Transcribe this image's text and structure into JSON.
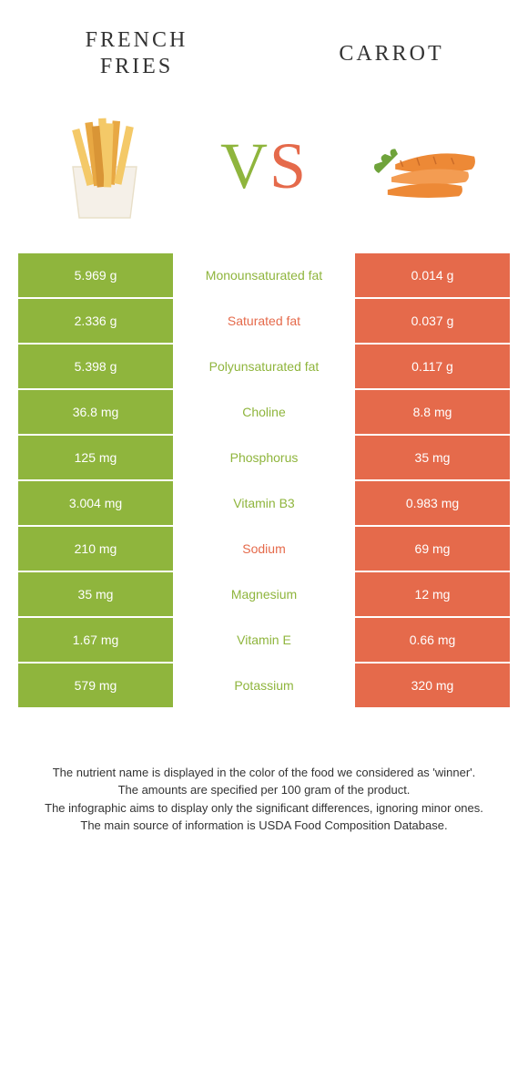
{
  "colors": {
    "green": "#8fb53d",
    "orange": "#e56a4b",
    "text": "#333333"
  },
  "left_food": {
    "title": "FRENCH FRIES"
  },
  "right_food": {
    "title": "CARROT"
  },
  "vs": {
    "v": "V",
    "s": "S"
  },
  "rows": [
    {
      "left": "5.969 g",
      "label": "Monounsaturated fat",
      "right": "0.014 g",
      "winner": "left"
    },
    {
      "left": "2.336 g",
      "label": "Saturated fat",
      "right": "0.037 g",
      "winner": "right"
    },
    {
      "left": "5.398 g",
      "label": "Polyunsaturated fat",
      "right": "0.117 g",
      "winner": "left"
    },
    {
      "left": "36.8 mg",
      "label": "Choline",
      "right": "8.8 mg",
      "winner": "left"
    },
    {
      "left": "125 mg",
      "label": "Phosphorus",
      "right": "35 mg",
      "winner": "left"
    },
    {
      "left": "3.004 mg",
      "label": "Vitamin B3",
      "right": "0.983 mg",
      "winner": "left"
    },
    {
      "left": "210 mg",
      "label": "Sodium",
      "right": "69 mg",
      "winner": "right"
    },
    {
      "left": "35 mg",
      "label": "Magnesium",
      "right": "12 mg",
      "winner": "left"
    },
    {
      "left": "1.67 mg",
      "label": "Vitamin E",
      "right": "0.66 mg",
      "winner": "left"
    },
    {
      "left": "579 mg",
      "label": "Potassium",
      "right": "320 mg",
      "winner": "left"
    }
  ],
  "footer": {
    "line1": "The nutrient name is displayed in the color of the food we considered as 'winner'.",
    "line2": "The amounts are specified per 100 gram of the product.",
    "line3": "The infographic aims to display only the significant differences, ignoring minor ones.",
    "line4": "The main source of information is USDA Food Composition Database."
  }
}
